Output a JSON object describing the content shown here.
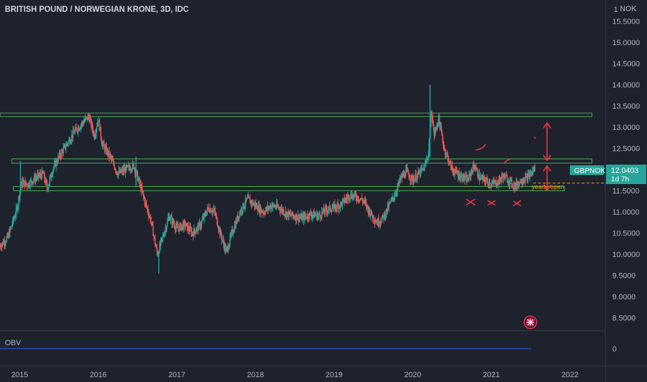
{
  "header": {
    "title": "BRITISH POUND / NORWEGIAN KRONE, 3D, IDC",
    "currency": "NOK",
    "currency_prefix": "1"
  },
  "price_tag": {
    "symbol": "GBPNOK",
    "price": "12.0403",
    "countdown": "1d 7h"
  },
  "annotation_yearly_open": "yearly open",
  "obv": {
    "label": "OBV",
    "axis_value": "0"
  },
  "colors": {
    "bg": "#1e222d",
    "up": "#26a69a",
    "down": "#ef5350",
    "zone": "#4caf50",
    "drawing": "#f23645",
    "yearly_open": "#ff9800",
    "obv_line": "#2962ff"
  },
  "chart_data": {
    "type": "candlestick",
    "title": "BRITISH POUND / NORWEGIAN KRONE, 3D, IDC",
    "symbol": "GBPNOK",
    "ylim": [
      8.2,
      16.0
    ],
    "y_ticks": [
      "15.5000",
      "15.0000",
      "14.5000",
      "14.0000",
      "13.5000",
      "13.0000",
      "12.5000",
      "12.0000",
      "11.5000",
      "11.0000",
      "10.5000",
      "10.0000",
      "9.5000",
      "9.0000",
      "8.5000"
    ],
    "y_tick_values": [
      15.5,
      15.0,
      14.5,
      14.0,
      13.5,
      13.0,
      12.5,
      12.0,
      11.5,
      11.0,
      10.5,
      10.0,
      9.5,
      9.0,
      8.5
    ],
    "x_ticks": [
      "2015",
      "2016",
      "2017",
      "2018",
      "2019",
      "2020",
      "2021",
      "2022"
    ],
    "x_tick_years": [
      2015,
      2016,
      2017,
      2018,
      2019,
      2020,
      2021,
      2022
    ],
    "xlim": [
      2014.75,
      2022.45
    ],
    "last_price": 12.0403,
    "path_knots": [
      [
        2014.75,
        10.2
      ],
      [
        2014.85,
        10.4
      ],
      [
        2014.97,
        11.1
      ],
      [
        2015.02,
        11.7
      ],
      [
        2015.1,
        11.65
      ],
      [
        2015.2,
        11.8
      ],
      [
        2015.3,
        11.9
      ],
      [
        2015.35,
        11.55
      ],
      [
        2015.42,
        12.0
      ],
      [
        2015.5,
        12.3
      ],
      [
        2015.6,
        12.6
      ],
      [
        2015.7,
        12.9
      ],
      [
        2015.8,
        13.1
      ],
      [
        2015.88,
        13.25
      ],
      [
        2015.95,
        12.8
      ],
      [
        2016.0,
        13.2
      ],
      [
        2016.05,
        12.6
      ],
      [
        2016.15,
        12.3
      ],
      [
        2016.25,
        11.9
      ],
      [
        2016.35,
        12.0
      ],
      [
        2016.45,
        12.1
      ],
      [
        2016.52,
        11.7
      ],
      [
        2016.6,
        11.2
      ],
      [
        2016.67,
        10.8
      ],
      [
        2016.75,
        10.0
      ],
      [
        2016.82,
        10.4
      ],
      [
        2016.9,
        10.9
      ],
      [
        2017.0,
        10.6
      ],
      [
        2017.1,
        10.7
      ],
      [
        2017.2,
        10.5
      ],
      [
        2017.3,
        10.7
      ],
      [
        2017.4,
        11.1
      ],
      [
        2017.48,
        11.0
      ],
      [
        2017.55,
        10.5
      ],
      [
        2017.63,
        10.05
      ],
      [
        2017.7,
        10.5
      ],
      [
        2017.8,
        11.0
      ],
      [
        2017.9,
        11.3
      ],
      [
        2018.0,
        11.15
      ],
      [
        2018.1,
        11.0
      ],
      [
        2018.2,
        11.15
      ],
      [
        2018.3,
        11.1
      ],
      [
        2018.4,
        10.95
      ],
      [
        2018.5,
        10.9
      ],
      [
        2018.6,
        10.85
      ],
      [
        2018.7,
        10.95
      ],
      [
        2018.8,
        10.9
      ],
      [
        2018.9,
        11.05
      ],
      [
        2019.0,
        11.1
      ],
      [
        2019.1,
        11.2
      ],
      [
        2019.2,
        11.4
      ],
      [
        2019.3,
        11.35
      ],
      [
        2019.38,
        11.25
      ],
      [
        2019.45,
        11.0
      ],
      [
        2019.55,
        10.75
      ],
      [
        2019.62,
        10.85
      ],
      [
        2019.7,
        11.15
      ],
      [
        2019.78,
        11.45
      ],
      [
        2019.85,
        11.8
      ],
      [
        2019.92,
        11.95
      ],
      [
        2020.0,
        11.75
      ],
      [
        2020.08,
        11.9
      ],
      [
        2020.15,
        12.05
      ],
      [
        2020.2,
        12.4
      ],
      [
        2020.24,
        13.4
      ],
      [
        2020.27,
        12.8
      ],
      [
        2020.33,
        13.2
      ],
      [
        2020.4,
        12.5
      ],
      [
        2020.5,
        12.0
      ],
      [
        2020.6,
        11.85
      ],
      [
        2020.7,
        11.75
      ],
      [
        2020.78,
        12.1
      ],
      [
        2020.85,
        11.8
      ],
      [
        2020.92,
        11.75
      ],
      [
        2021.0,
        11.65
      ],
      [
        2021.08,
        11.7
      ],
      [
        2021.15,
        11.85
      ],
      [
        2021.22,
        11.75
      ],
      [
        2021.3,
        11.6
      ],
      [
        2021.38,
        11.75
      ],
      [
        2021.45,
        11.8
      ],
      [
        2021.5,
        11.9
      ],
      [
        2021.56,
        12.04
      ]
    ],
    "zones": [
      {
        "y_low": 13.25,
        "y_high": 13.33,
        "x_start": 2014.75,
        "x_end": 2022.28
      },
      {
        "y_low": 12.15,
        "y_high": 12.25,
        "x_start": 2014.9,
        "x_end": 2022.28
      },
      {
        "y_low": 11.5,
        "y_high": 11.6,
        "x_start": 2014.92,
        "x_end": 2021.93
      }
    ],
    "yearly_open": 11.68,
    "obv_series": "flat line",
    "legend": "none",
    "grid": false
  }
}
